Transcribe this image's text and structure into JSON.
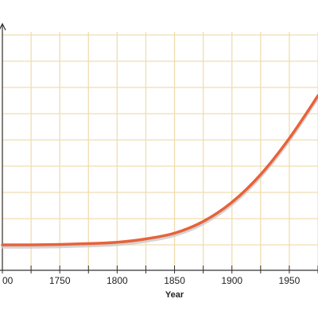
{
  "chart_data": {
    "type": "line",
    "title": "",
    "xlabel": "Year",
    "ylabel": "",
    "xlim": [
      1700,
      1975
    ],
    "ylim": [
      0,
      10
    ],
    "grid": true,
    "x_ticks": [
      1700,
      1725,
      1750,
      1775,
      1800,
      1825,
      1850,
      1875,
      1900,
      1925,
      1950,
      1975
    ],
    "x_tick_labels": [
      {
        "x": 1700,
        "label": "00"
      },
      {
        "x": 1750,
        "label": "1750"
      },
      {
        "x": 1800,
        "label": "1800"
      },
      {
        "x": 1850,
        "label": "1850"
      },
      {
        "x": 1900,
        "label": "1900"
      },
      {
        "x": 1950,
        "label": "1950"
      }
    ],
    "y_ticks": [
      0,
      1,
      2,
      3,
      4,
      5,
      6,
      7,
      8,
      9,
      10
    ],
    "series": [
      {
        "color": "#e8623a",
        "shadow_color": "#c9c9c9",
        "x": [
          1700,
          1725,
          1750,
          1775,
          1800,
          1825,
          1850,
          1875,
          1900,
          1925,
          1950,
          1975
        ],
        "y": [
          0.0,
          0.0,
          0.02,
          0.06,
          0.12,
          0.28,
          0.55,
          1.1,
          2.0,
          3.3,
          5.0,
          7.0
        ]
      }
    ]
  },
  "colors": {
    "grid": "#f0ddb0",
    "axis": "#333333"
  }
}
